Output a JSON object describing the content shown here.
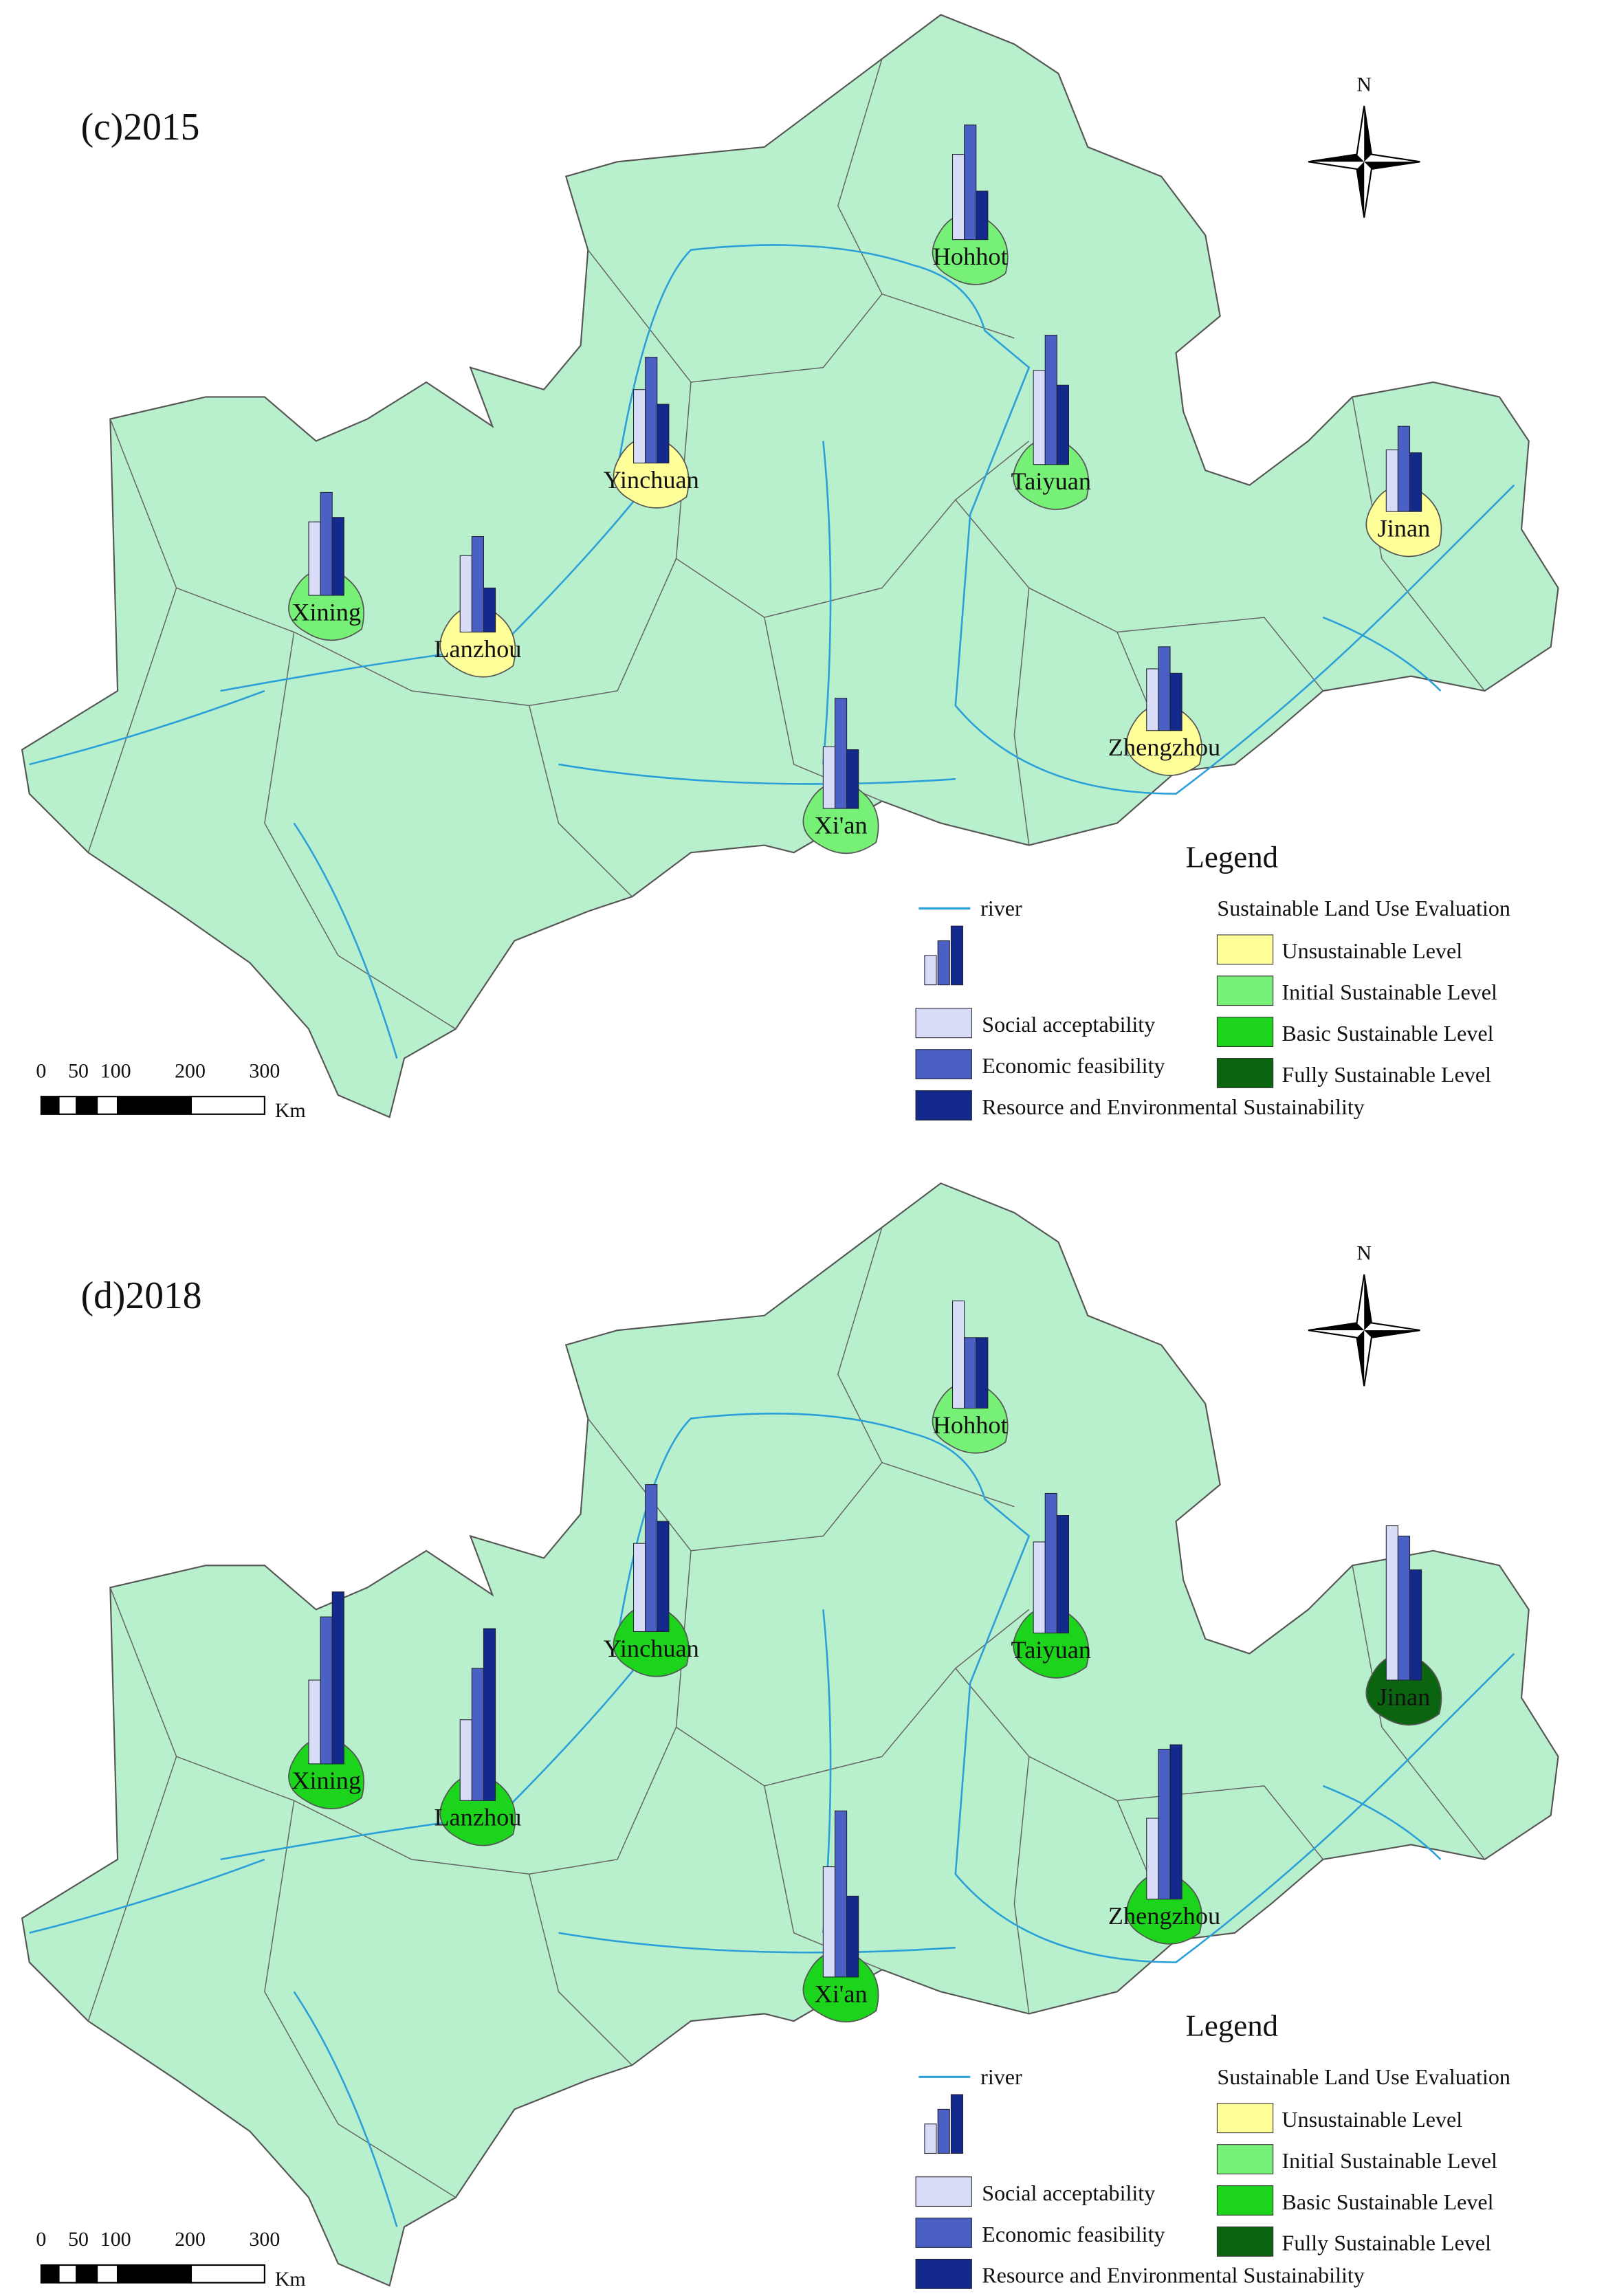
{
  "maps": [
    {
      "title": "(c)2015",
      "north": "N",
      "cities": [
        {
          "name": "Hohhot",
          "level": "Initial Sustainable Level",
          "values": [
            58,
            78,
            33
          ]
        },
        {
          "name": "Yinchuan",
          "level": "Unsustainable Level",
          "values": [
            50,
            72,
            40
          ]
        },
        {
          "name": "Taiyuan",
          "level": "Initial Sustainable Level",
          "values": [
            64,
            88,
            54
          ]
        },
        {
          "name": "Jinan",
          "level": "Unsustainable Level",
          "values": [
            42,
            58,
            40
          ]
        },
        {
          "name": "Xining",
          "level": "Initial Sustainable Level",
          "values": [
            50,
            70,
            53
          ]
        },
        {
          "name": "Lanzhou",
          "level": "Unsustainable Level",
          "values": [
            52,
            65,
            30
          ]
        },
        {
          "name": "Xi'an",
          "level": "Initial Sustainable Level",
          "values": [
            42,
            75,
            40
          ]
        },
        {
          "name": "Zhengzhou",
          "level": "Unsustainable Level",
          "values": [
            42,
            57,
            39
          ]
        }
      ],
      "legend": {
        "title": "Legend",
        "river": "river",
        "evaluation_title": "Sustainable Land Use Evaluation",
        "classes": [
          {
            "label": "Unsustainable Level",
            "color": "#ffff99"
          },
          {
            "label": "Initial Sustainable Level",
            "color": "#77f077"
          },
          {
            "label": "Basic Sustainable Level",
            "color": "#1bd41b"
          },
          {
            "label": "Fully Sustainable Level",
            "color": "#0b6410"
          }
        ],
        "series": [
          {
            "name": "Social acceptability",
            "color": "#d8dcf6"
          },
          {
            "name": "Economic feasibility",
            "color": "#4b60c4"
          },
          {
            "name": "Resource and Environmental Sustainability",
            "color": "#13298c"
          }
        ]
      },
      "scale": {
        "ticks": [
          0,
          50,
          100,
          200,
          300
        ],
        "unit": "Km"
      }
    },
    {
      "title": "(d)2018",
      "north": "N",
      "cities": [
        {
          "name": "Hohhot",
          "level": "Initial Sustainable Level",
          "values": [
            73,
            48,
            48
          ]
        },
        {
          "name": "Yinchuan",
          "level": "Basic Sustainable Level",
          "values": [
            60,
            100,
            75
          ]
        },
        {
          "name": "Taiyuan",
          "level": "Basic Sustainable Level",
          "values": [
            62,
            95,
            80
          ]
        },
        {
          "name": "Jinan",
          "level": "Fully Sustainable Level",
          "values": [
            105,
            98,
            75
          ]
        },
        {
          "name": "Xining",
          "level": "Basic Sustainable Level",
          "values": [
            57,
            100,
            117
          ]
        },
        {
          "name": "Lanzhou",
          "level": "Basic Sustainable Level",
          "values": [
            55,
            90,
            117
          ]
        },
        {
          "name": "Xi'an",
          "level": "Basic Sustainable Level",
          "values": [
            75,
            113,
            55
          ]
        },
        {
          "name": "Zhengzhou",
          "level": "Basic Sustainable Level",
          "values": [
            55,
            102,
            105
          ]
        }
      ],
      "legend": {
        "title": "Legend",
        "river": "river",
        "evaluation_title": "Sustainable Land Use Evaluation",
        "classes": [
          {
            "label": "Unsustainable Level",
            "color": "#ffff99"
          },
          {
            "label": "Initial Sustainable Level",
            "color": "#77f077"
          },
          {
            "label": "Basic Sustainable Level",
            "color": "#1bd41b"
          },
          {
            "label": "Fully Sustainable Level",
            "color": "#0b6410"
          }
        ],
        "series": [
          {
            "name": "Social acceptability",
            "color": "#d8dcf6"
          },
          {
            "name": "Economic feasibility",
            "color": "#4b60c4"
          },
          {
            "name": "Resource and Environmental Sustainability",
            "color": "#13298c"
          }
        ]
      },
      "scale": {
        "ticks": [
          0,
          50,
          100,
          200,
          300
        ],
        "unit": "Km"
      }
    }
  ]
}
